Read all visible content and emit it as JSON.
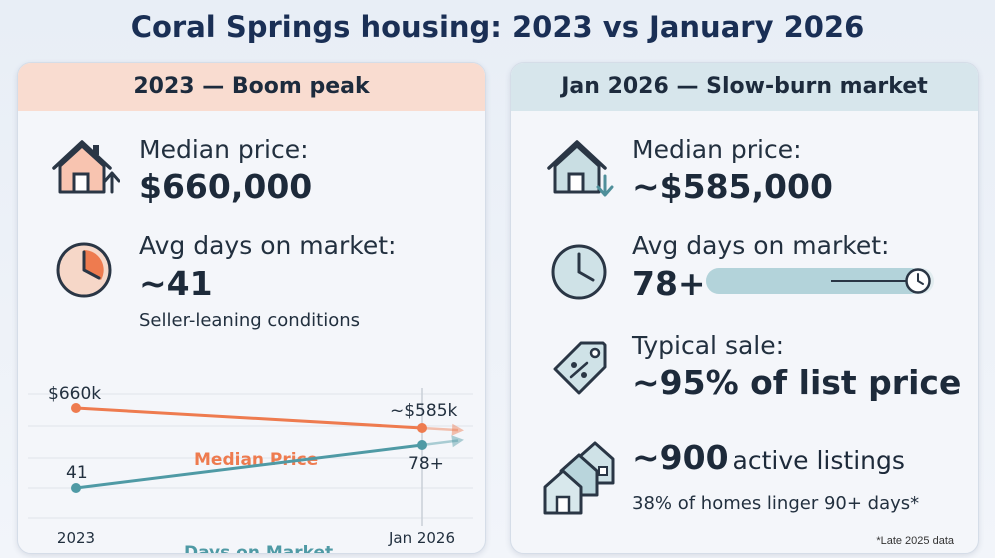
{
  "title": "Coral Springs housing: 2023 vs January 2026",
  "left": {
    "header": "2023 — Boom peak",
    "median_label": "Median price:",
    "median_value": "$660,000",
    "dom_label": "Avg days on market:",
    "dom_value": "~41",
    "conditions": "Seller-leaning conditions",
    "icons": [
      "house-up-arrow-icon",
      "clock-icon"
    ],
    "accent": "#ee7b4f"
  },
  "right": {
    "header": "Jan 2026 — Slow-burn market",
    "median_label": "Median price:",
    "median_value": "~$585,000",
    "dom_label": "Avg days on market:",
    "dom_value": "78+",
    "sale_label": "Typical sale:",
    "sale_value": "~95% of list price",
    "listings_value": "~900",
    "listings_label": "active listings",
    "linger_text": "38% of homes linger 90+ days*",
    "footnote": "*Late 2025 data",
    "dom_bar_level": 0.95,
    "icons": [
      "house-down-arrow-icon",
      "clock-icon",
      "price-tag-icon",
      "houses-icon"
    ],
    "accent": "#4f8f9a"
  },
  "chart_data": {
    "type": "line",
    "categories": [
      "2023",
      "Jan 2026"
    ],
    "series": [
      {
        "name": "Median Price",
        "point_labels": [
          "$660k",
          "~$585k"
        ],
        "values": [
          660,
          585
        ],
        "color": "#ee7b4f"
      },
      {
        "name": "Days on Market",
        "point_labels": [
          "41",
          "78+"
        ],
        "values": [
          41,
          78
        ],
        "color": "#4f9aa5"
      }
    ],
    "grid": true,
    "xlabel": "",
    "ylabel": ""
  }
}
